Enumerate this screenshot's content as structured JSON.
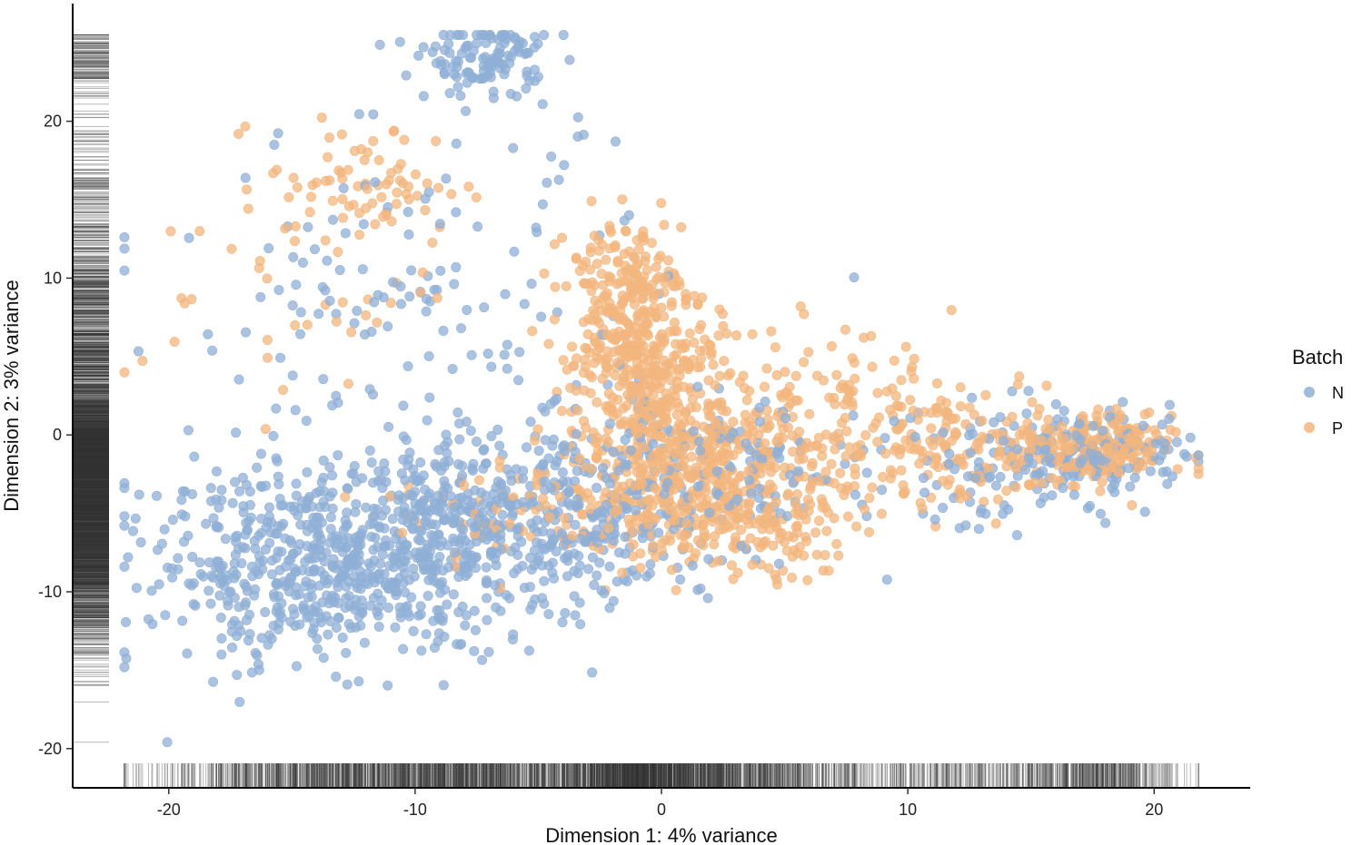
{
  "chart_data": {
    "type": "scatter",
    "xlabel": "Dimension 1: 4% variance",
    "ylabel": "Dimension 2: 3% variance",
    "xlim": [
      -23.9,
      23.9
    ],
    "ylim": [
      -22.5,
      27.5
    ],
    "x_ticks": [
      -20,
      -10,
      0,
      10,
      20
    ],
    "y_ticks": [
      -20,
      -10,
      0,
      10,
      20
    ],
    "x_tick_labels": [
      "-20",
      "-10",
      "0",
      "10",
      "20"
    ],
    "y_tick_labels": [
      "-20",
      "-10",
      "0",
      "10",
      "20"
    ],
    "grid": false,
    "rug": true,
    "legend": {
      "title": "Batch",
      "placement": "right",
      "entries": [
        "N",
        "P"
      ]
    },
    "series": [
      {
        "name": "N",
        "color": "#8FAFD6",
        "clusters": [
          {
            "cx": -13,
            "cy": -8,
            "sx": 3.5,
            "sy": 3,
            "n": 600
          },
          {
            "cx": -8,
            "cy": -6,
            "sx": 2.5,
            "sy": 3,
            "n": 250
          },
          {
            "cx": -3,
            "cy": -5,
            "sx": 2.5,
            "sy": 3,
            "n": 200
          },
          {
            "cx": -7,
            "cy": 24,
            "sx": 1.2,
            "sy": 1.2,
            "n": 120
          },
          {
            "cx": -10,
            "cy": 8,
            "sx": 5,
            "sy": 6,
            "n": 150
          },
          {
            "cx": 2,
            "cy": -3,
            "sx": 3,
            "sy": 3,
            "n": 150
          },
          {
            "cx": 14,
            "cy": -2,
            "sx": 3,
            "sy": 2,
            "n": 100
          },
          {
            "cx": 18,
            "cy": -1,
            "sx": 1.8,
            "sy": 1.2,
            "n": 130
          },
          {
            "cx": -18,
            "cy": -10,
            "sx": 2.5,
            "sy": 4,
            "n": 60
          }
        ]
      },
      {
        "name": "P",
        "color": "#F3B67E",
        "clusters": [
          {
            "cx": -1.5,
            "cy": 9,
            "sx": 1.2,
            "sy": 2.5,
            "n": 220
          },
          {
            "cx": -0.5,
            "cy": 3,
            "sx": 1.5,
            "sy": 3,
            "n": 300
          },
          {
            "cx": 1,
            "cy": -3,
            "sx": 2.5,
            "sy": 2.5,
            "n": 350
          },
          {
            "cx": 4,
            "cy": -5,
            "sx": 2,
            "sy": 2,
            "n": 150
          },
          {
            "cx": 6,
            "cy": 2,
            "sx": 3,
            "sy": 2.5,
            "n": 150
          },
          {
            "cx": 12,
            "cy": -1,
            "sx": 3,
            "sy": 2,
            "n": 150
          },
          {
            "cx": 17.5,
            "cy": -1,
            "sx": 1.6,
            "sy": 1.1,
            "n": 220
          },
          {
            "cx": -12,
            "cy": 16,
            "sx": 2,
            "sy": 2,
            "n": 70
          },
          {
            "cx": -15,
            "cy": 10,
            "sx": 3,
            "sy": 4,
            "n": 40
          },
          {
            "cx": -5,
            "cy": -5,
            "sx": 3,
            "sy": 2,
            "n": 80
          }
        ]
      }
    ]
  }
}
